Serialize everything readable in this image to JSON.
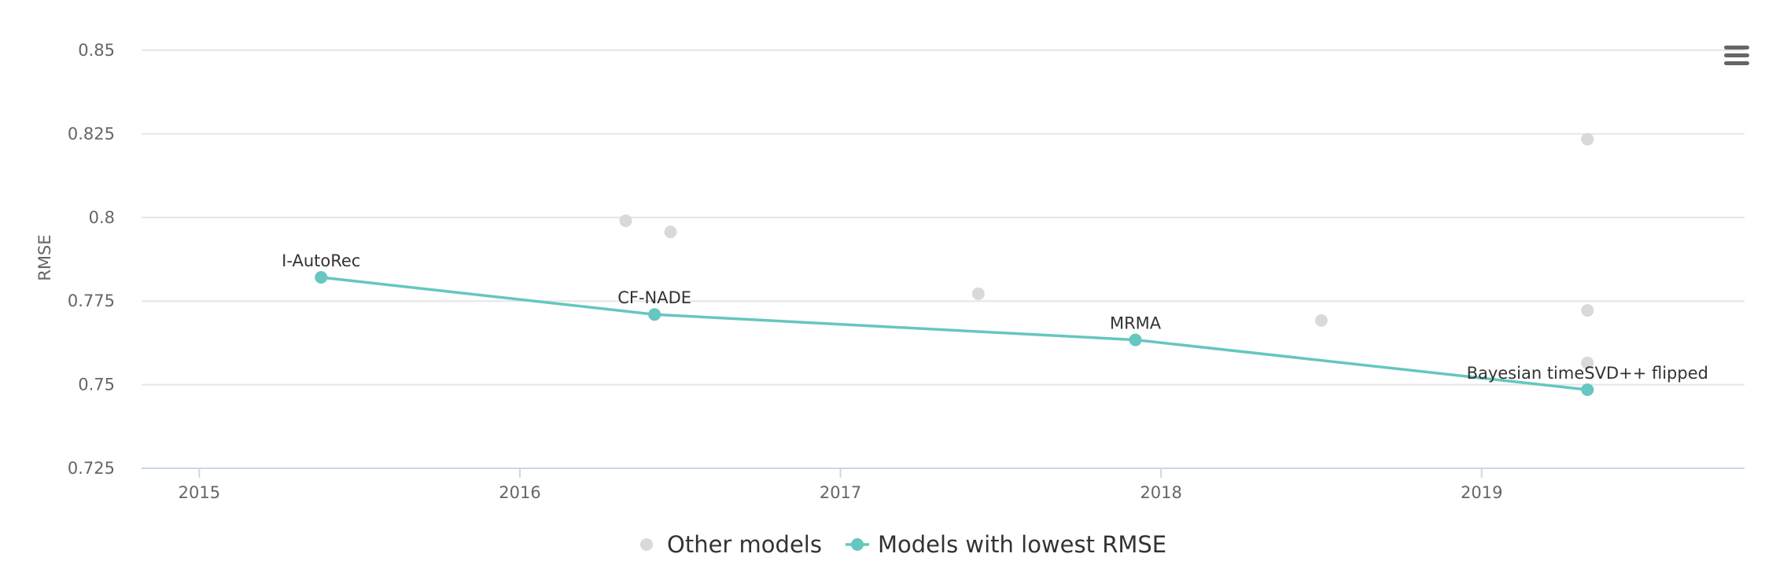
{
  "menu": {
    "icon": "hamburger-menu-icon"
  },
  "chart_data": {
    "type": "scatter",
    "title": "",
    "xlabel": "",
    "ylabel": "RMSE",
    "xlim": [
      2014.82,
      2019.82
    ],
    "ylim": [
      0.725,
      0.85
    ],
    "x_ticks": [
      {
        "value": 2015,
        "label": "2015"
      },
      {
        "value": 2016,
        "label": "2016"
      },
      {
        "value": 2017,
        "label": "2017"
      },
      {
        "value": 2018,
        "label": "2018"
      },
      {
        "value": 2019,
        "label": "2019"
      }
    ],
    "y_ticks": [
      {
        "value": 0.725,
        "label": "0.725"
      },
      {
        "value": 0.75,
        "label": "0.75"
      },
      {
        "value": 0.775,
        "label": "0.775"
      },
      {
        "value": 0.8,
        "label": "0.8"
      },
      {
        "value": 0.825,
        "label": "0.825"
      },
      {
        "value": 0.85,
        "label": "0.85"
      }
    ],
    "grid": true,
    "legend_position": "bottom-center",
    "series": [
      {
        "name": "Other models",
        "kind": "scatter",
        "color": "#d9d9d9",
        "points": [
          {
            "x": 2016.33,
            "y": 0.799
          },
          {
            "x": 2016.47,
            "y": 0.7957
          },
          {
            "x": 2017.43,
            "y": 0.7772
          },
          {
            "x": 2018.5,
            "y": 0.7692
          },
          {
            "x": 2019.33,
            "y": 0.8234
          },
          {
            "x": 2019.33,
            "y": 0.7722
          },
          {
            "x": 2019.33,
            "y": 0.7565
          }
        ]
      },
      {
        "name": "Models with lowest RMSE",
        "kind": "line",
        "color": "#66c6c0",
        "points": [
          {
            "x": 2015.38,
            "y": 0.7821,
            "label": "I-AutoRec"
          },
          {
            "x": 2016.42,
            "y": 0.771,
            "label": "CF-NADE"
          },
          {
            "x": 2017.92,
            "y": 0.7634,
            "label": "MRMA"
          },
          {
            "x": 2019.33,
            "y": 0.7485,
            "label": "Bayesian timeSVD++ flipped"
          }
        ]
      }
    ]
  }
}
